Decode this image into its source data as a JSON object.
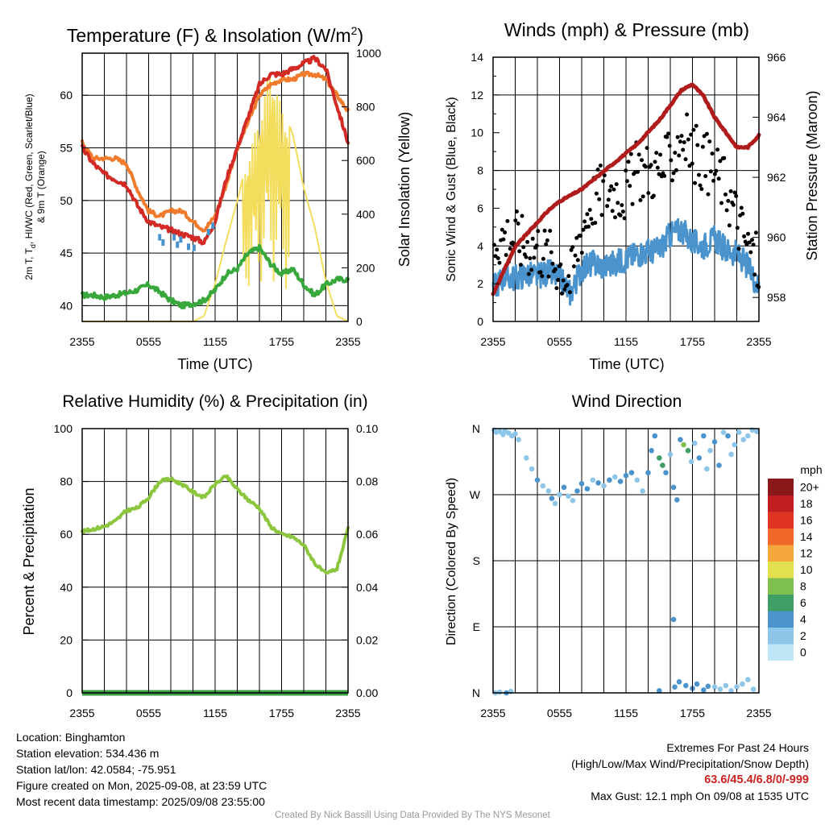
{
  "panels": {
    "temperature": {
      "title_main": "Temperature (F) & Insolation (W/m",
      "title_sup": "2",
      "title_end": ")",
      "xlabel": "Time (UTC)",
      "ylabel_left_line1": "2m T, T",
      "ylabel_left_sub": "d",
      "ylabel_left_line1b": ", HI/WC (Red, Green, Scarlet/Blue)",
      "ylabel_left_line2": "& 9m T (Orange)",
      "ylabel_right": "Solar Insolation (Yellow)",
      "left_ticks": [
        "40",
        "45",
        "50",
        "55",
        "60"
      ],
      "right_ticks": [
        "0",
        "200",
        "400",
        "600",
        "800",
        "1000"
      ]
    },
    "winds": {
      "title": "Winds (mph) & Pressure (mb)",
      "xlabel": "Time (UTC)",
      "ylabel_left": "Sonic Wind & Gust (Blue, Black)",
      "ylabel_right": "Station Pressure (Maroon)",
      "left_ticks": [
        "0",
        "2",
        "4",
        "6",
        "8",
        "10",
        "12",
        "14"
      ],
      "right_ticks": [
        "958",
        "960",
        "962",
        "964",
        "966"
      ]
    },
    "humidity": {
      "title": "Relative Humidity (%) & Precipitation (in)",
      "ylabel_left": "Percent & Precipitation",
      "left_ticks": [
        "0",
        "20",
        "40",
        "60",
        "80",
        "100"
      ],
      "right_ticks": [
        "0.00",
        "0.02",
        "0.04",
        "0.06",
        "0.08",
        "0.10"
      ]
    },
    "direction": {
      "title": "Wind Direction",
      "ylabel_left": "Direction (Colored By Speed)",
      "left_ticks": [
        "N",
        "E",
        "S",
        "W",
        "N"
      ],
      "legend_title": "mph",
      "legend_labels": [
        "0",
        "2",
        "4",
        "6",
        "8",
        "10",
        "12",
        "14",
        "16",
        "18",
        "20+"
      ],
      "legend_colors": [
        "#bfe6f7",
        "#8ec6ea",
        "#4a93cc",
        "#3f9e65",
        "#7ebf4e",
        "#e3e050",
        "#f6a73c",
        "#f0692a",
        "#e03524",
        "#c01f22",
        "#8a1a1a"
      ]
    }
  },
  "x_ticks": [
    "2355",
    "0555",
    "1155",
    "1755",
    "2355"
  ],
  "colors": {
    "temp_red": "#d42a26",
    "temp_orange": "#f07b2c",
    "dewpoint_green": "#38a83c",
    "insolation_yellow": "#f4dd5c",
    "windchill_blue": "#4a93cc",
    "wind_blue": "#4a93cc",
    "gust_black": "#000000",
    "pressure_maroon": "#b01c1c",
    "rh_green": "#8cc63f",
    "precip_green": "#3ea14a"
  },
  "chart_data": [
    {
      "type": "line",
      "title": "Temperature (F) & Insolation (W/m2)",
      "xlabel": "Time (UTC)",
      "x": [
        0,
        1,
        2,
        3,
        4,
        5,
        6,
        7,
        8,
        9,
        10,
        11,
        12,
        13,
        14,
        15,
        16,
        17,
        18,
        19,
        20,
        21,
        22,
        23,
        24
      ],
      "ylim": [
        38.5,
        64
      ],
      "ylim_right": [
        0,
        1000
      ],
      "series": [
        {
          "name": "2m T (Red)",
          "axis": "left",
          "values": [
            55,
            53.5,
            52.5,
            52,
            51.5,
            49.5,
            48,
            47.5,
            47.2,
            46.8,
            46.5,
            46,
            48,
            52,
            55,
            58,
            61,
            62,
            62,
            62.5,
            63,
            63.5,
            62.5,
            59,
            55.5
          ]
        },
        {
          "name": "9m T (Orange)",
          "axis": "left",
          "values": [
            55.5,
            54,
            54,
            54,
            53.5,
            51,
            49,
            48.5,
            49,
            49,
            48,
            47.2,
            48.5,
            51.5,
            55,
            57.5,
            60,
            61,
            61.5,
            61.5,
            62,
            62,
            61.5,
            60,
            58.5
          ]
        },
        {
          "name": "Dewpoint (Green)",
          "axis": "left",
          "values": [
            41,
            41,
            40.8,
            41,
            41.2,
            41.5,
            42,
            41.3,
            40.5,
            40,
            40.2,
            40.5,
            41.5,
            43,
            43.5,
            45,
            45.5,
            44,
            43,
            43.5,
            42,
            41,
            42,
            42.5,
            42.5
          ]
        },
        {
          "name": "Solar Insolation (Yellow)",
          "axis": "right",
          "values": [
            0,
            0,
            0,
            0,
            0,
            0,
            0,
            0,
            0,
            0,
            0,
            20,
            140,
            300,
            450,
            620,
            760,
            950,
            800,
            700,
            500,
            350,
            150,
            20,
            0
          ]
        }
      ]
    },
    {
      "type": "line",
      "title": "Winds (mph) & Pressure (mb)",
      "xlabel": "Time (UTC)",
      "x": [
        0,
        1,
        2,
        3,
        4,
        5,
        6,
        7,
        8,
        9,
        10,
        11,
        12,
        13,
        14,
        15,
        16,
        17,
        18,
        19,
        20,
        21,
        22,
        23,
        24
      ],
      "ylim": [
        0,
        14
      ],
      "ylim_right": [
        957.2,
        966
      ],
      "series": [
        {
          "name": "Sonic Wind (Blue)",
          "axis": "left",
          "values": [
            1.8,
            2.4,
            2.3,
            2.5,
            2.4,
            2.6,
            2.3,
            1.5,
            2.8,
            3.1,
            2.9,
            3.1,
            3.3,
            3.6,
            3.7,
            3.8,
            4.6,
            4.9,
            4.2,
            4.0,
            4.4,
            3.8,
            3.6,
            2.9,
            1.8
          ]
        },
        {
          "name": "Gust (Black)",
          "axis": "left",
          "values": [
            4.5,
            4.5,
            4.5,
            4,
            4,
            3.5,
            3,
            2.2,
            5,
            6.5,
            7,
            7,
            6.8,
            8,
            8,
            8,
            8.5,
            10,
            9,
            8.5,
            8,
            7.2,
            5.5,
            4,
            3
          ]
        },
        {
          "name": "Station Pressure (Maroon)",
          "axis": "right",
          "values": [
            958.1,
            958.9,
            959.7,
            960.1,
            960.5,
            960.9,
            961.2,
            961.4,
            961.6,
            961.9,
            962.2,
            962.5,
            962.8,
            963.1,
            963.5,
            963.9,
            964.4,
            964.9,
            965.1,
            964.7,
            964.0,
            963.5,
            963.0,
            963.0,
            963.4
          ]
        }
      ]
    },
    {
      "type": "line",
      "title": "Relative Humidity (%) & Precipitation (in)",
      "x": [
        0,
        1,
        2,
        3,
        4,
        5,
        6,
        7,
        8,
        9,
        10,
        11,
        12,
        13,
        14,
        15,
        16,
        17,
        18,
        19,
        20,
        21,
        22,
        23,
        24
      ],
      "ylim": [
        0,
        100
      ],
      "ylim_right": [
        0,
        0.1
      ],
      "series": [
        {
          "name": "Relative Humidity",
          "axis": "left",
          "values": [
            61,
            62,
            63,
            65,
            69,
            70,
            74,
            80,
            81,
            79,
            76,
            74,
            79,
            82,
            77,
            73,
            70,
            63,
            60,
            59,
            56,
            49,
            45,
            47,
            62
          ]
        },
        {
          "name": "Precipitation",
          "axis": "right",
          "values": [
            0,
            0,
            0,
            0,
            0,
            0,
            0,
            0,
            0,
            0,
            0,
            0,
            0,
            0,
            0,
            0,
            0,
            0,
            0,
            0,
            0,
            0,
            0,
            0,
            0
          ]
        }
      ]
    },
    {
      "type": "scatter",
      "title": "Wind Direction",
      "ylabel": "Direction (Colored By Speed)",
      "y_axis": "direction, N at 360 top and N at 0 bottom",
      "points": [
        [
          0.1,
          358,
          2
        ],
        [
          0.3,
          355,
          1
        ],
        [
          0.6,
          356,
          2
        ],
        [
          0.9,
          352,
          2
        ],
        [
          1.1,
          357,
          1
        ],
        [
          1.4,
          354,
          2
        ],
        [
          1.7,
          350,
          2
        ],
        [
          2.0,
          353,
          1
        ],
        [
          2.3,
          345,
          2
        ],
        [
          3.0,
          320,
          2
        ],
        [
          3.5,
          305,
          2
        ],
        [
          4.0,
          290,
          3
        ],
        [
          4.5,
          282,
          2
        ],
        [
          5.0,
          275,
          2
        ],
        [
          5.3,
          265,
          3
        ],
        [
          5.6,
          258,
          1
        ],
        [
          6.0,
          270,
          2
        ],
        [
          6.4,
          280,
          3
        ],
        [
          6.8,
          268,
          2
        ],
        [
          7.2,
          262,
          2
        ],
        [
          7.6,
          275,
          3
        ],
        [
          8.0,
          285,
          3
        ],
        [
          8.5,
          278,
          3
        ],
        [
          9.0,
          290,
          2
        ],
        [
          9.5,
          286,
          3
        ],
        [
          10.0,
          282,
          2
        ],
        [
          10.5,
          290,
          3
        ],
        [
          11.0,
          294,
          2
        ],
        [
          11.5,
          288,
          3
        ],
        [
          12.0,
          296,
          3
        ],
        [
          12.5,
          300,
          3
        ],
        [
          13.0,
          290,
          2
        ],
        [
          13.5,
          275,
          2
        ],
        [
          14.0,
          300,
          3
        ],
        [
          14.3,
          330,
          3
        ],
        [
          14.6,
          350,
          4
        ],
        [
          15.0,
          320,
          5
        ],
        [
          15.3,
          310,
          6
        ],
        [
          15.6,
          300,
          3
        ],
        [
          16.0,
          325,
          2
        ],
        [
          16.3,
          280,
          3
        ],
        [
          16.6,
          263,
          3
        ],
        [
          16.9,
          345,
          3
        ],
        [
          17.2,
          338,
          7
        ],
        [
          17.6,
          330,
          5
        ],
        [
          17.9,
          315,
          2
        ],
        [
          18.2,
          340,
          2
        ],
        [
          18.6,
          320,
          3
        ],
        [
          19.0,
          350,
          4
        ],
        [
          19.3,
          305,
          2
        ],
        [
          19.6,
          330,
          2
        ],
        [
          20.0,
          342,
          3
        ],
        [
          20.4,
          310,
          3
        ],
        [
          20.8,
          355,
          2
        ],
        [
          21.2,
          350,
          3
        ],
        [
          21.5,
          325,
          2
        ],
        [
          21.8,
          338,
          1
        ],
        [
          22.2,
          355,
          2
        ],
        [
          22.6,
          345,
          2
        ],
        [
          23.0,
          350,
          2
        ],
        [
          23.4,
          358,
          1
        ],
        [
          23.8,
          356,
          1
        ],
        [
          0.2,
          0,
          2
        ],
        [
          0.6,
          1,
          2
        ],
        [
          1.2,
          0,
          3
        ],
        [
          1.6,
          2,
          2
        ],
        [
          15.0,
          3,
          3
        ],
        [
          16.4,
          8,
          3
        ],
        [
          16.8,
          15,
          3
        ],
        [
          17.4,
          10,
          3
        ],
        [
          18.0,
          6,
          3
        ],
        [
          18.4,
          12,
          3
        ],
        [
          19.0,
          4,
          3
        ],
        [
          19.4,
          9,
          3
        ],
        [
          20.0,
          8,
          2
        ],
        [
          20.5,
          5,
          2
        ],
        [
          21.0,
          10,
          2
        ],
        [
          21.5,
          3,
          2
        ],
        [
          22.0,
          8,
          2
        ],
        [
          22.5,
          12,
          1
        ],
        [
          23.0,
          18,
          1
        ],
        [
          23.5,
          5,
          2
        ],
        [
          16.3,
          100,
          3
        ]
      ]
    }
  ],
  "info": {
    "location": "Location: Binghamton",
    "elevation": "Station elevation: 534.436 m",
    "latlon": "Station lat/lon: 42.0584; -75.951",
    "created": "Figure created on Mon, 2025-09-08, at 23:59 UTC",
    "recent": "Most recent data timestamp: 2025/09/08 23:55:00",
    "extremes_title": "Extremes For Past 24 Hours",
    "extremes_desc": "(High/Low/Max Wind/Precipitation/Snow Depth)",
    "extremes_values": "63.6/45.4/6.8/0/-999",
    "max_gust": "Max Gust: 12.1 mph On 09/08 at 1535 UTC",
    "credit": "Created By Nick Bassill Using Data Provided By The NYS Mesonet"
  }
}
